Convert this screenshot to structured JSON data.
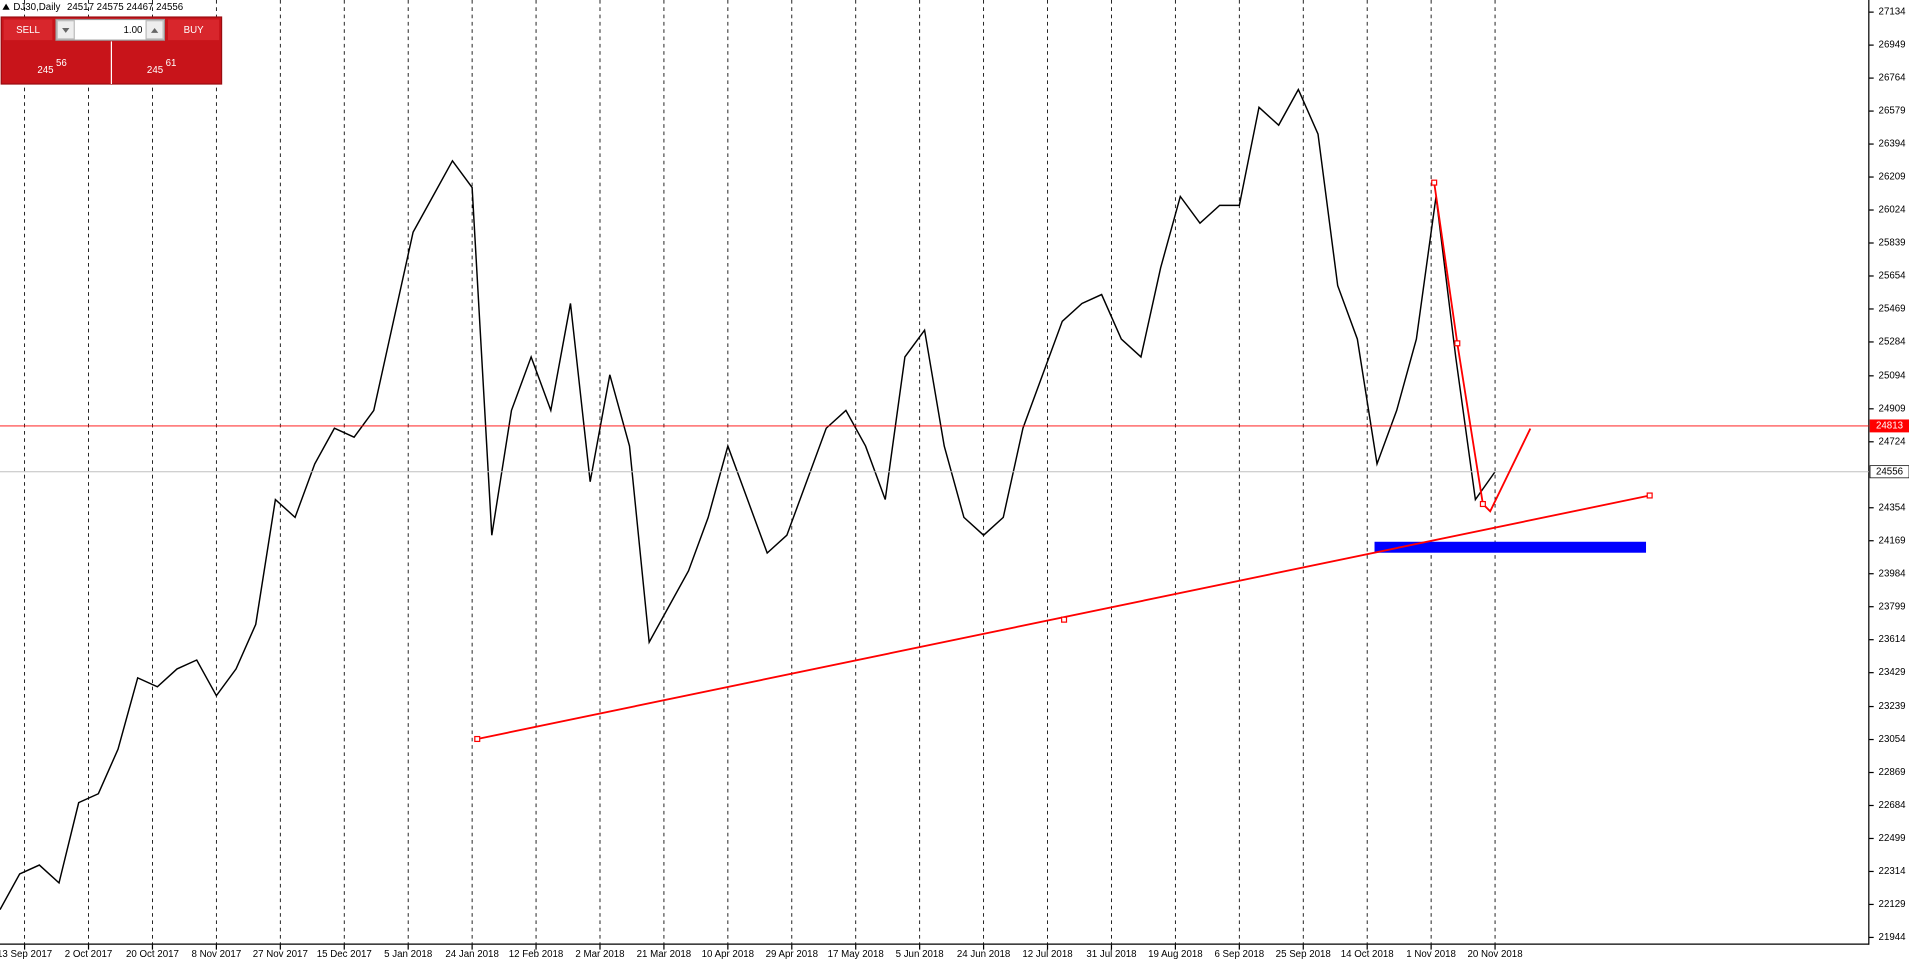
{
  "header": {
    "symbol": "DJ30,Daily",
    "ohlc": "24517 24575 24467 24556"
  },
  "trade_panel": {
    "sell_label": "SELL",
    "buy_label": "BUY",
    "lot": "1.00",
    "sell_prefix": "245",
    "sell_digits": "56",
    "buy_prefix": "245",
    "buy_digits": "61"
  },
  "chart_data": {
    "type": "line",
    "color": "#000000",
    "x": [
      0,
      4,
      8,
      12,
      16,
      20,
      24,
      28,
      32,
      36,
      40,
      44,
      48,
      52,
      56,
      60,
      64,
      68,
      72,
      76,
      80,
      84,
      88,
      92,
      96,
      100,
      104,
      108,
      112,
      116,
      120,
      124,
      128,
      132,
      136,
      140,
      144,
      148,
      152,
      156,
      160,
      164,
      168,
      172,
      176,
      180,
      184,
      188,
      192,
      196,
      200,
      204,
      208,
      212,
      216,
      220,
      224,
      228,
      232,
      236,
      240,
      244,
      248,
      252,
      256,
      260,
      264,
      268,
      272,
      276,
      280,
      284,
      288,
      292,
      296,
      300,
      304
    ],
    "values": [
      22100,
      22300,
      22350,
      22250,
      22700,
      22750,
      23000,
      23400,
      23350,
      23450,
      23500,
      23300,
      23450,
      23700,
      24400,
      24300,
      24600,
      24800,
      24750,
      24900,
      25400,
      25900,
      26100,
      26300,
      26150,
      24200,
      24900,
      25200,
      24900,
      25500,
      24500,
      25100,
      24700,
      23600,
      23800,
      24000,
      24300,
      24700,
      24400,
      24100,
      24200,
      24500,
      24800,
      24900,
      24700,
      24400,
      25200,
      25350,
      24700,
      24300,
      24200,
      24300,
      24800,
      25100,
      25400,
      25500,
      25550,
      25300,
      25200,
      25700,
      26100,
      25950,
      26050,
      26050,
      26600,
      26500,
      26700,
      26450,
      25600,
      25300,
      24600,
      24900,
      25300,
      26100,
      25200,
      24400,
      24556
    ],
    "xlim": [
      0,
      380
    ],
    "xticks": [
      {
        "value": 5,
        "label": "13 Sep 2017"
      },
      {
        "value": 18,
        "label": "2 Oct 2017"
      },
      {
        "value": 31,
        "label": "20 Oct 2017"
      },
      {
        "value": 44,
        "label": "8 Nov 2017"
      },
      {
        "value": 57,
        "label": "27 Nov 2017"
      },
      {
        "value": 70,
        "label": "15 Dec 2017"
      },
      {
        "value": 83,
        "label": "5 Jan 2018"
      },
      {
        "value": 96,
        "label": "24 Jan 2018"
      },
      {
        "value": 109,
        "label": "12 Feb 2018"
      },
      {
        "value": 122,
        "label": "2 Mar 2018"
      },
      {
        "value": 135,
        "label": "21 Mar 2018"
      },
      {
        "value": 148,
        "label": "10 Apr 2018"
      },
      {
        "value": 161,
        "label": "29 Apr 2018"
      },
      {
        "value": 174,
        "label": "17 May 2018"
      },
      {
        "value": 187,
        "label": "5 Jun 2018"
      },
      {
        "value": 200,
        "label": "24 Jun 2018"
      },
      {
        "value": 213,
        "label": "12 Jul 2018"
      },
      {
        "value": 226,
        "label": "31 Jul 2018"
      },
      {
        "value": 239,
        "label": "19 Aug 2018"
      },
      {
        "value": 252,
        "label": "6 Sep 2018"
      },
      {
        "value": 265,
        "label": "25 Sep 2018"
      },
      {
        "value": 278,
        "label": "14 Oct 2018"
      },
      {
        "value": 291,
        "label": "1 Nov 2018"
      },
      {
        "value": 304,
        "label": "20 Nov 2018"
      }
    ],
    "ylim": [
      21903,
      27202
    ],
    "yticks": [
      21944,
      22129,
      22314,
      22499,
      22684,
      22869,
      23054,
      23239,
      23429,
      23614,
      23799,
      23984,
      24169,
      24354,
      24724,
      24909,
      25094,
      25284,
      25469,
      25654,
      25839,
      26024,
      26209,
      26394,
      26579,
      26764,
      26949,
      27134
    ],
    "grid": true,
    "price_lines": [
      {
        "value": 24813,
        "color": "#ff0000",
        "label_color": "#ffffff",
        "label_fill": "#ff0000"
      },
      {
        "value": 24556,
        "color": "#c0c0c0",
        "label_color": "#000000",
        "label_fill": "#ffffff"
      }
    ]
  }
}
